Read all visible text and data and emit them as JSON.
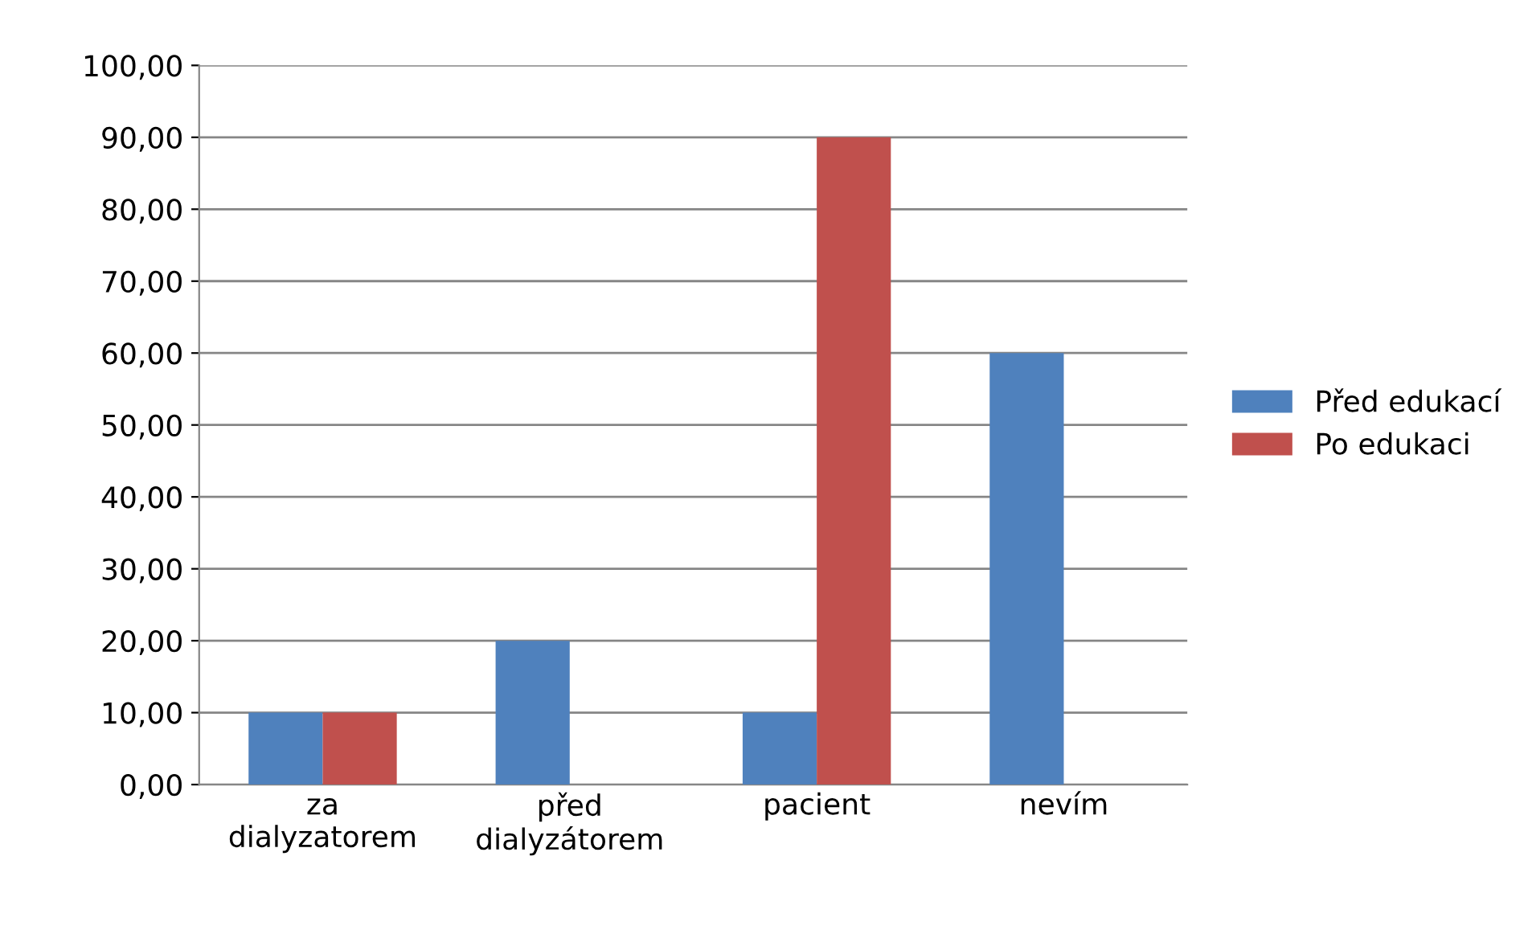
{
  "chart_data": {
    "type": "bar",
    "categories": [
      "za\ndialyzatorem",
      "před\ndialyzátorem",
      "pacient",
      "nevím"
    ],
    "series": [
      {
        "name": "Před edukací",
        "color": "#4f81bd",
        "values": [
          10,
          20,
          10,
          60
        ]
      },
      {
        "name": "Po edukaci",
        "color": "#c0504d",
        "values": [
          10,
          0,
          90,
          0
        ]
      }
    ],
    "ylim": [
      0,
      100
    ],
    "yticks": [
      {
        "value": 0,
        "label": "0,00"
      },
      {
        "value": 10,
        "label": "10,00"
      },
      {
        "value": 20,
        "label": "20,00"
      },
      {
        "value": 30,
        "label": "30,00"
      },
      {
        "value": 40,
        "label": "40,00"
      },
      {
        "value": 50,
        "label": "50,00"
      },
      {
        "value": 60,
        "label": "60,00"
      },
      {
        "value": 70,
        "label": "70,00"
      },
      {
        "value": 80,
        "label": "80,00"
      },
      {
        "value": 90,
        "label": "90,00"
      },
      {
        "value": 100,
        "label": "100,00"
      }
    ],
    "grid": "y",
    "legend": "right"
  }
}
